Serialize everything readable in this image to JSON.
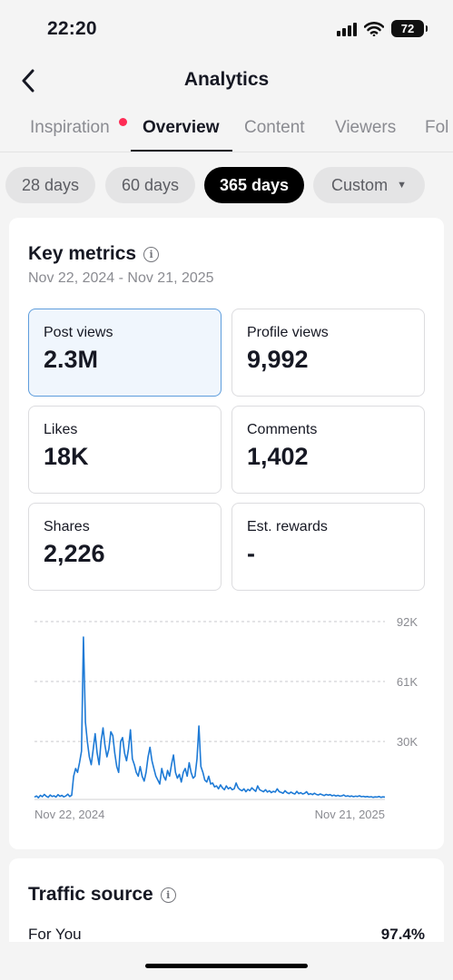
{
  "status": {
    "time": "22:20",
    "battery": "72"
  },
  "header": {
    "title": "Analytics"
  },
  "tabs": [
    {
      "label": "Inspiration",
      "badge": true
    },
    {
      "label": "Overview",
      "active": true
    },
    {
      "label": "Content"
    },
    {
      "label": "Viewers"
    },
    {
      "label": "Fol"
    }
  ],
  "ranges": [
    {
      "label": "28 days"
    },
    {
      "label": "60 days"
    },
    {
      "label": "365 days",
      "active": true
    },
    {
      "label": "Custom",
      "icon": "caret-down-icon"
    }
  ],
  "key_metrics": {
    "title": "Key metrics",
    "date_range": "Nov 22, 2024 - Nov 21, 2025",
    "items": [
      {
        "label": "Post views",
        "value": "2.3M",
        "selected": true
      },
      {
        "label": "Profile views",
        "value": "9,992"
      },
      {
        "label": "Likes",
        "value": "18K"
      },
      {
        "label": "Comments",
        "value": "1,402"
      },
      {
        "label": "Shares",
        "value": "2,226"
      },
      {
        "label": "Est. rewards",
        "value": "-"
      }
    ]
  },
  "chart_data": {
    "type": "line",
    "x_start_label": "Nov 22, 2024",
    "x_end_label": "Nov 21, 2025",
    "y_ticks": [
      {
        "value": 30000,
        "label": "30K"
      },
      {
        "value": 61000,
        "label": "61K"
      },
      {
        "value": 92000,
        "label": "92K"
      }
    ],
    "ylim": [
      0,
      92000
    ],
    "grid": true,
    "line_color": "#1d7ad6",
    "series": [
      {
        "values": [
          1200,
          1800,
          900,
          2100,
          1400,
          2600,
          1700,
          1100,
          2300,
          1500,
          1900,
          1200,
          2500,
          1600,
          2100,
          1300,
          1800,
          2700,
          1500,
          2200,
          12000,
          16000,
          14000,
          19000,
          25000,
          84000,
          40000,
          30000,
          22000,
          18000,
          26000,
          34000,
          24000,
          18000,
          30000,
          37000,
          28000,
          22000,
          26000,
          35000,
          33000,
          24000,
          17000,
          14000,
          30000,
          32000,
          24000,
          20000,
          26000,
          36000,
          21000,
          18000,
          14000,
          12000,
          17000,
          12000,
          9500,
          14000,
          22000,
          27000,
          20000,
          16000,
          12000,
          10000,
          8000,
          16000,
          12000,
          10000,
          15000,
          12000,
          18000,
          23000,
          14000,
          11000,
          13000,
          9000,
          14000,
          16000,
          12000,
          19000,
          14000,
          11000,
          12000,
          21000,
          38000,
          17000,
          14000,
          10000,
          9000,
          12000,
          8000,
          8500,
          6500,
          7000,
          5500,
          7500,
          6000,
          5000,
          7000,
          5500,
          6200,
          5000,
          5500,
          8500,
          6000,
          5000,
          4500,
          5500,
          4000,
          5200,
          4500,
          6000,
          5000,
          4200,
          7000,
          5000,
          4500,
          4000,
          5000,
          3800,
          4500,
          3500,
          4200,
          3800,
          5500,
          4000,
          3600,
          3200,
          4500,
          3500,
          3000,
          3800,
          3200,
          2800,
          4200,
          3000,
          3500,
          2800,
          3200,
          4000,
          2600,
          3000,
          2500,
          3200,
          2600,
          2300,
          2800,
          2400,
          2000,
          2600,
          2200,
          2500,
          1900,
          2200,
          1800,
          2100,
          1700,
          1900,
          2300,
          1600,
          1900,
          1500,
          1800,
          1400,
          1700,
          1500,
          1900,
          1400,
          1600,
          1300,
          1500,
          1200,
          1400,
          1100,
          1300,
          1200,
          1500,
          1100,
          1300,
          1200
        ]
      }
    ]
  },
  "traffic": {
    "title": "Traffic source",
    "rows": [
      {
        "label": "For You",
        "value": "97.4%"
      }
    ]
  }
}
